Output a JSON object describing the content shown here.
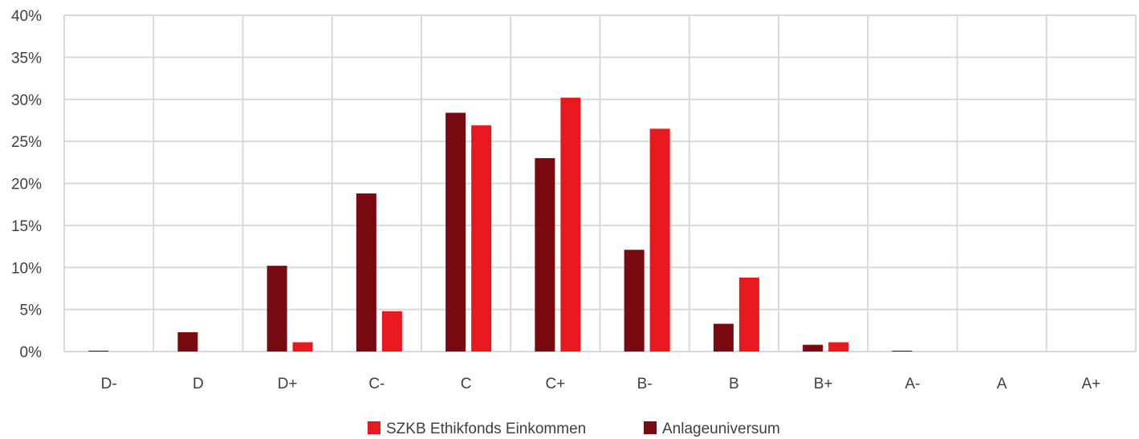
{
  "chart_data": {
    "type": "bar",
    "categories": [
      "D-",
      "D",
      "D+",
      "C-",
      "C",
      "C+",
      "B-",
      "B",
      "B+",
      "A-",
      "A",
      "A+"
    ],
    "series": [
      {
        "name": "Anlageuniversum",
        "color": "#7a0a12",
        "values": [
          0.1,
          2.3,
          10.2,
          18.8,
          28.4,
          23.0,
          12.1,
          3.3,
          0.8,
          0.1,
          0,
          0
        ]
      },
      {
        "name": "SZKB Ethikfonds Einkommen",
        "color": "#e8191e",
        "values": [
          0,
          0,
          1.1,
          4.8,
          26.9,
          30.2,
          26.5,
          8.8,
          1.1,
          0,
          0,
          0
        ]
      }
    ],
    "yticks": [
      "0%",
      "5%",
      "10%",
      "15%",
      "20%",
      "25%",
      "30%",
      "35%",
      "40%"
    ],
    "ylim": [
      0,
      40
    ],
    "grid": true,
    "legend": {
      "position": "bottom",
      "items": [
        "SZKB Ethikfonds Einkommen",
        "Anlageuniversum"
      ]
    }
  }
}
